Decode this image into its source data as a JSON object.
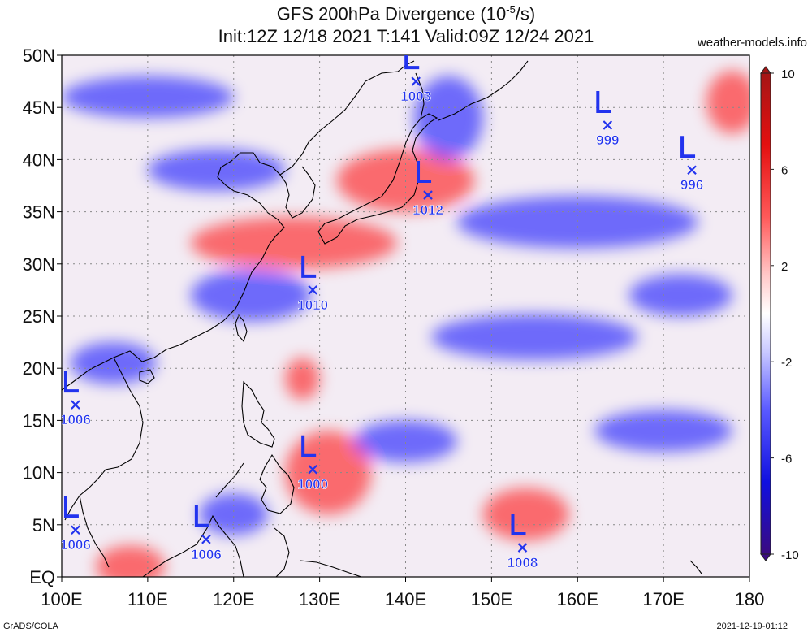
{
  "title": {
    "line1_prefix": "GFS 200hPa Divergence (10",
    "line1_exp": "-5",
    "line1_suffix": "/s)",
    "line2": "Init:12Z 12/18 2021 T:141 Valid:09Z 12/24 2021"
  },
  "site": "weather-models.info",
  "footer": {
    "left": "GrADS/COLA",
    "right": "2021-12-19-01:12"
  },
  "colors": {
    "positive": "#ff0000",
    "negative": "#0000ff",
    "marker": "#2233ee",
    "neutral": "#ffffff"
  },
  "map": {
    "lon_range": [
      100,
      180
    ],
    "lat_range": [
      0,
      50
    ],
    "lon_ticks": [
      "100E",
      "110E",
      "120E",
      "130E",
      "140E",
      "150E",
      "160E",
      "170E",
      "180"
    ],
    "lat_ticks": [
      "EQ",
      "5N",
      "10N",
      "15N",
      "20N",
      "25N",
      "30N",
      "35N",
      "40N",
      "45N",
      "50N"
    ],
    "grid": true,
    "lows": [
      {
        "lon": 141.2,
        "lat": 47.5,
        "pressure": "1003"
      },
      {
        "lon": 163.5,
        "lat": 43.3,
        "pressure": "999"
      },
      {
        "lon": 173.3,
        "lat": 39.0,
        "pressure": "996"
      },
      {
        "lon": 142.6,
        "lat": 36.6,
        "pressure": "1012"
      },
      {
        "lon": 129.2,
        "lat": 27.5,
        "pressure": "1010"
      },
      {
        "lon": 101.6,
        "lat": 16.5,
        "pressure": "1006"
      },
      {
        "lon": 129.2,
        "lat": 10.3,
        "pressure": "1000"
      },
      {
        "lon": 101.6,
        "lat": 4.5,
        "pressure": "1006"
      },
      {
        "lon": 116.8,
        "lat": 3.6,
        "pressure": "1006"
      },
      {
        "lon": 153.6,
        "lat": 2.8,
        "pressure": "1008"
      }
    ],
    "field_blobs": [
      {
        "lon": 131,
        "lat": 10,
        "rx": 5,
        "ry": 4,
        "sign": 1
      },
      {
        "lon": 127,
        "lat": 32,
        "rx": 12,
        "ry": 2.5,
        "sign": 1
      },
      {
        "lon": 140,
        "lat": 38,
        "rx": 8,
        "ry": 3,
        "sign": 1
      },
      {
        "lon": 178,
        "lat": 45.5,
        "rx": 3,
        "ry": 3,
        "sign": 1
      },
      {
        "lon": 154,
        "lat": 6,
        "rx": 5,
        "ry": 2.5,
        "sign": 1
      },
      {
        "lon": 128,
        "lat": 19,
        "rx": 2,
        "ry": 2,
        "sign": 1
      },
      {
        "lon": 108,
        "lat": 1,
        "rx": 4,
        "ry": 2,
        "sign": 1
      },
      {
        "lon": 155,
        "lat": 23,
        "rx": 12,
        "ry": 2.2,
        "sign": -1
      },
      {
        "lon": 122,
        "lat": 27,
        "rx": 7,
        "ry": 2.5,
        "sign": -1
      },
      {
        "lon": 106,
        "lat": 20.5,
        "rx": 5,
        "ry": 2,
        "sign": -1
      },
      {
        "lon": 160,
        "lat": 34,
        "rx": 14,
        "ry": 2.5,
        "sign": -1
      },
      {
        "lon": 172,
        "lat": 27,
        "rx": 6,
        "ry": 2,
        "sign": -1
      },
      {
        "lon": 118,
        "lat": 39,
        "rx": 8,
        "ry": 2,
        "sign": -1
      },
      {
        "lon": 145,
        "lat": 44,
        "rx": 4,
        "ry": 4,
        "sign": -1
      },
      {
        "lon": 110,
        "lat": 46,
        "rx": 10,
        "ry": 2,
        "sign": -1
      },
      {
        "lon": 140,
        "lat": 13,
        "rx": 6,
        "ry": 2,
        "sign": -1
      },
      {
        "lon": 170,
        "lat": 14,
        "rx": 8,
        "ry": 2,
        "sign": -1
      },
      {
        "lon": 120,
        "lat": 6,
        "rx": 4,
        "ry": 2,
        "sign": -1
      }
    ]
  },
  "colorbar": {
    "min": -10,
    "max": 10,
    "labels": [
      "10",
      "6",
      "2",
      "-2",
      "-6",
      "-10"
    ],
    "label_values": [
      10,
      6,
      2,
      -2,
      -6,
      -10
    ]
  }
}
